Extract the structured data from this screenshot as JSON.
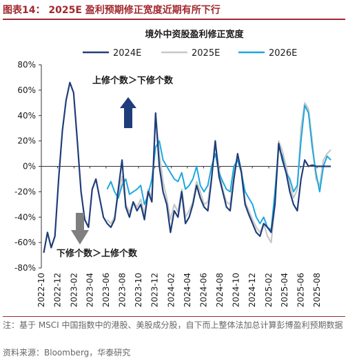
{
  "figure_title": "图表14：  2025E 盈利预期修正宽度近期有所下行",
  "note": "注：基于 MSCI 中国指数中的港股、美股成分股，自下而上整体法加总计算彭博盈利预期数据",
  "source": "资料来源：Bloomberg，华泰研究",
  "colors": {
    "accent": "#a1282e",
    "s2024": "#1f3d7a",
    "s2025": "#c8c8c8",
    "s2026": "#1da7df",
    "arrow_up": "#1f3d7a",
    "arrow_down": "#7f7f7f"
  },
  "chart_data": {
    "type": "line",
    "title": "境外中资股盈利修正宽度",
    "xlabel": "",
    "ylabel": "",
    "ylim": [
      -80,
      80
    ],
    "yticks": [
      "80%",
      "60%",
      "40%",
      "20%",
      "0%",
      "-20%",
      "-40%",
      "-60%",
      "-80%"
    ],
    "xticks": [
      "2022-10",
      "2022-12",
      "2023-02",
      "2023-04",
      "2023-06",
      "2023-08",
      "2023-10",
      "2023-12",
      "2024-02",
      "2024-04",
      "2024-06",
      "2024-08",
      "2024-10",
      "2024-12",
      "2025-02",
      "2025-04",
      "2025-06",
      "2025-08"
    ],
    "x_start": "2022-10",
    "x_end": "2025-09",
    "legend_position": "top",
    "grid": false,
    "annotations": {
      "up": "上修个数＞下修个数",
      "down": "下修个数＞上修个数"
    },
    "series": [
      {
        "name": "2024E",
        "x": [
          "2022-10-10",
          "2022-10-24",
          "2022-11-07",
          "2022-11-21",
          "2022-12-05",
          "2022-12-19",
          "2023-01-02",
          "2023-01-16",
          "2023-01-30",
          "2023-02-13",
          "2023-02-27",
          "2023-03-13",
          "2023-03-27",
          "2023-04-10",
          "2023-04-24",
          "2023-05-08",
          "2023-05-22",
          "2023-06-05",
          "2023-06-19",
          "2023-07-03",
          "2023-07-17",
          "2023-07-31",
          "2023-08-14",
          "2023-08-28",
          "2023-09-11",
          "2023-09-25",
          "2023-10-09",
          "2023-10-23",
          "2023-11-06",
          "2023-11-20",
          "2023-12-04",
          "2023-12-18",
          "2024-01-01",
          "2024-01-15",
          "2024-01-29",
          "2024-02-12",
          "2024-02-26",
          "2024-03-11",
          "2024-03-25",
          "2024-04-08",
          "2024-04-22",
          "2024-05-06",
          "2024-05-20",
          "2024-06-03",
          "2024-06-17",
          "2024-07-01",
          "2024-07-15",
          "2024-07-29",
          "2024-08-12",
          "2024-08-26",
          "2024-09-09",
          "2024-09-23",
          "2024-10-07",
          "2024-10-21",
          "2024-11-04",
          "2024-11-18",
          "2024-12-02",
          "2024-12-16",
          "2024-12-30",
          "2025-01-13",
          "2025-01-27",
          "2025-02-10",
          "2025-02-24",
          "2025-03-10",
          "2025-03-24",
          "2025-04-07",
          "2025-04-21",
          "2025-05-05",
          "2025-05-19",
          "2025-06-02",
          "2025-06-16",
          "2025-06-30",
          "2025-07-14",
          "2025-07-28",
          "2025-08-11",
          "2025-08-25",
          "2025-09-08",
          "2025-09-22"
        ],
        "values": [
          -68,
          -52,
          -64,
          -55,
          -10,
          28,
          52,
          66,
          58,
          20,
          -20,
          -42,
          -48,
          -18,
          -10,
          -25,
          -40,
          -45,
          -48,
          -42,
          -18,
          5,
          -32,
          -40,
          -28,
          -35,
          -30,
          -42,
          -20,
          -28,
          42,
          0,
          -20,
          -30,
          -52,
          -35,
          -40,
          -20,
          -45,
          -40,
          -30,
          -15,
          -25,
          -32,
          -35,
          -10,
          20,
          -8,
          -20,
          -32,
          -35,
          -10,
          10,
          -5,
          -30,
          -38,
          -45,
          -52,
          -55,
          -45,
          -48,
          -52,
          -30,
          18,
          5,
          -5,
          -20,
          -30,
          -35,
          -10,
          5,
          0,
          1,
          0,
          0,
          0,
          0,
          0
        ]
      },
      {
        "name": "2025E",
        "x": [
          "2023-06-05",
          "2023-06-19",
          "2023-07-03",
          "2023-07-17",
          "2023-07-31",
          "2023-08-14",
          "2023-08-28",
          "2023-09-11",
          "2023-09-25",
          "2023-10-09",
          "2023-10-23",
          "2023-11-06",
          "2023-11-20",
          "2023-12-04",
          "2023-12-18",
          "2024-01-01",
          "2024-01-15",
          "2024-01-29",
          "2024-02-12",
          "2024-02-26",
          "2024-03-11",
          "2024-03-25",
          "2024-04-08",
          "2024-04-22",
          "2024-05-06",
          "2024-05-20",
          "2024-06-03",
          "2024-06-17",
          "2024-07-01",
          "2024-07-15",
          "2024-07-29",
          "2024-08-12",
          "2024-08-26",
          "2024-09-09",
          "2024-09-23",
          "2024-10-07",
          "2024-10-21",
          "2024-11-04",
          "2024-11-18",
          "2024-12-02",
          "2024-12-16",
          "2024-12-30",
          "2025-01-13",
          "2025-01-27",
          "2025-02-10",
          "2025-02-24",
          "2025-03-10",
          "2025-03-24",
          "2025-04-07",
          "2025-04-21",
          "2025-05-05",
          "2025-05-19",
          "2025-06-02",
          "2025-06-16",
          "2025-06-30",
          "2025-07-14",
          "2025-07-28",
          "2025-08-11",
          "2025-08-25",
          "2025-09-08",
          "2025-09-22"
        ],
        "values": [
          -42,
          -45,
          -40,
          -22,
          -8,
          -30,
          -36,
          -28,
          -32,
          -26,
          -38,
          -18,
          -24,
          40,
          10,
          -12,
          -25,
          -42,
          -30,
          -36,
          -18,
          -40,
          -35,
          -28,
          -12,
          -20,
          -30,
          -28,
          -8,
          18,
          -2,
          -18,
          -28,
          -30,
          -5,
          8,
          -2,
          -28,
          -35,
          -42,
          -48,
          -52,
          -45,
          -55,
          -60,
          -30,
          20,
          12,
          0,
          -15,
          -25,
          -18,
          30,
          50,
          45,
          20,
          -10,
          -15,
          5,
          10,
          13
        ]
      },
      {
        "name": "2026E",
        "x": [
          "2023-06-05",
          "2023-06-19",
          "2023-07-03",
          "2023-07-17",
          "2023-07-31",
          "2023-08-14",
          "2023-08-28",
          "2023-09-11",
          "2023-09-25",
          "2023-10-09",
          "2023-10-23",
          "2023-11-06",
          "2023-11-20",
          "2023-12-04",
          "2023-12-18",
          "2024-01-01",
          "2024-01-15",
          "2024-01-29",
          "2024-02-12",
          "2024-02-26",
          "2024-03-11",
          "2024-03-25",
          "2024-04-08",
          "2024-04-22",
          "2024-05-06",
          "2024-05-20",
          "2024-06-03",
          "2024-06-17",
          "2024-07-01",
          "2024-07-15",
          "2024-07-29",
          "2024-08-12",
          "2024-08-26",
          "2024-09-09",
          "2024-09-23",
          "2024-10-07",
          "2024-10-21",
          "2024-11-04",
          "2024-11-18",
          "2024-12-02",
          "2024-12-16",
          "2024-12-30",
          "2025-01-13",
          "2025-01-27",
          "2025-02-10",
          "2025-02-24",
          "2025-03-10",
          "2025-03-24",
          "2025-04-07",
          "2025-04-21",
          "2025-05-05",
          "2025-05-19",
          "2025-06-02",
          "2025-06-16",
          "2025-06-30",
          "2025-07-14",
          "2025-07-28",
          "2025-08-11",
          "2025-08-25",
          "2025-09-08",
          "2025-09-22"
        ],
        "values": [
          -18,
          -12,
          -20,
          -25,
          -15,
          -10,
          -22,
          -20,
          -18,
          -15,
          -30,
          -22,
          -10,
          15,
          20,
          5,
          0,
          -5,
          -10,
          -12,
          -5,
          -18,
          -15,
          -10,
          0,
          -15,
          -20,
          -15,
          0,
          10,
          -5,
          -12,
          -18,
          -20,
          0,
          5,
          -5,
          -20,
          -25,
          -30,
          -40,
          -45,
          -40,
          -48,
          -50,
          -20,
          15,
          8,
          -5,
          -10,
          -20,
          -15,
          20,
          48,
          42,
          15,
          -5,
          -20,
          0,
          8,
          5
        ]
      }
    ]
  }
}
